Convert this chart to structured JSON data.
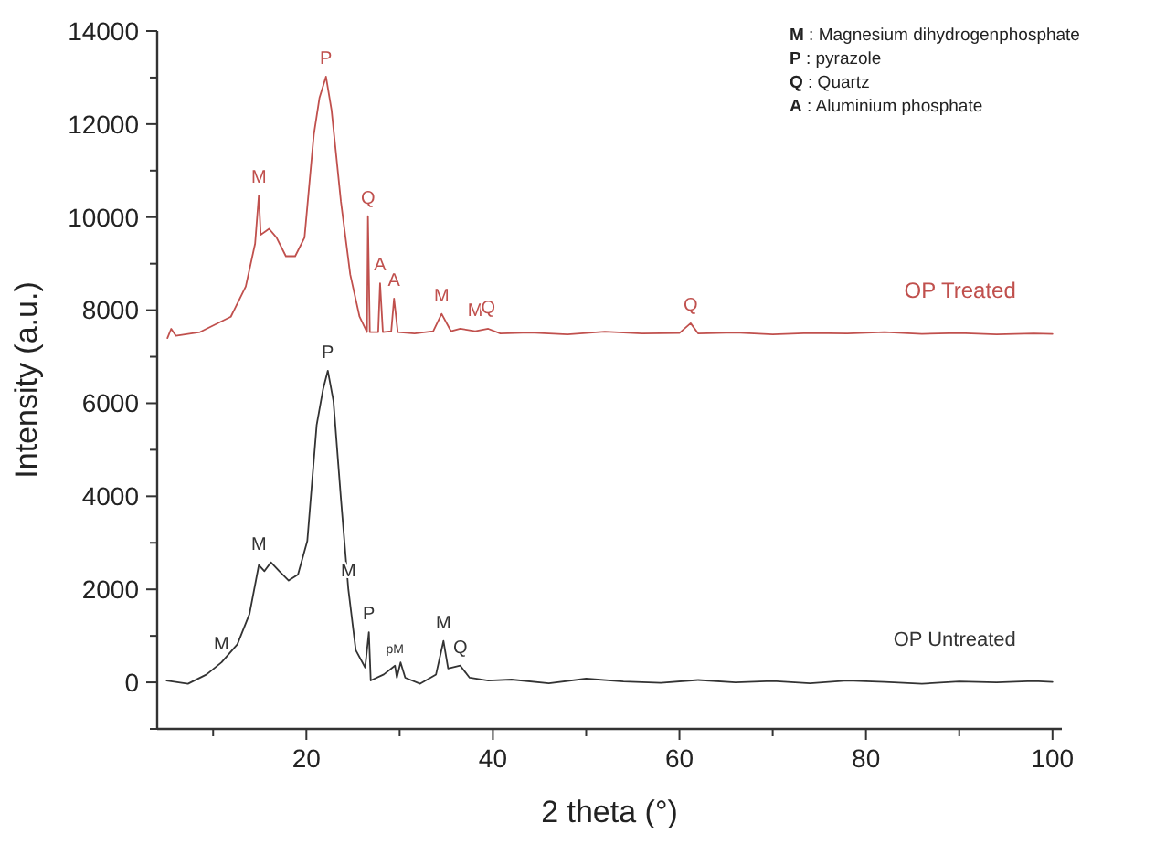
{
  "chart_data": {
    "type": "line",
    "xlabel": "2 theta (°)",
    "ylabel": "Intensity (a.u.)",
    "xlim": [
      4,
      101
    ],
    "ylim": [
      -1000,
      14000
    ],
    "xticks": [
      {
        "value": 10,
        "label": null
      },
      20,
      {
        "value": 30,
        "label": null
      },
      40,
      {
        "value": 50,
        "label": null
      },
      60,
      {
        "value": 70,
        "label": null
      },
      80,
      {
        "value": 90,
        "label": null
      },
      100
    ],
    "yticks": [
      {
        "value": -1000,
        "label": null
      },
      0,
      {
        "value": 1000,
        "label": null
      },
      2000,
      {
        "value": 3000,
        "label": null
      },
      4000,
      {
        "value": 5000,
        "label": null
      },
      6000,
      {
        "value": 7000,
        "label": null
      },
      8000,
      {
        "value": 9000,
        "label": null
      },
      10000,
      {
        "value": 11000,
        "label": null
      },
      12000,
      {
        "value": 13000,
        "label": null
      },
      14000
    ],
    "grid": false,
    "marker": "none",
    "line_style": "solid",
    "series": [
      {
        "name": "OP Treated",
        "color": "#c0504d",
        "x": [
          5.1,
          5.5,
          6.0,
          8.6,
          11.9,
          13.5,
          14.5,
          14.9,
          15.1,
          16.0,
          16.8,
          17.8,
          18.8,
          19.8,
          20.8,
          21.4,
          22.1,
          22.7,
          23.7,
          24.7,
          25.7,
          26.5,
          26.6,
          26.8,
          27.7,
          27.9,
          28.2,
          29.1,
          29.4,
          29.8,
          31.6,
          33.6,
          34.5,
          35.5,
          36.5,
          38.1,
          39.5,
          40.8,
          44,
          48,
          52,
          56,
          60,
          61.2,
          62,
          66,
          70,
          74,
          78,
          82,
          86,
          90,
          94,
          98,
          100
        ],
        "values": [
          7400,
          7600,
          7450,
          7530,
          7860,
          8510,
          9430,
          10470,
          9620,
          9750,
          9560,
          9160,
          9160,
          9560,
          11780,
          12560,
          13020,
          12300,
          10340,
          8770,
          7860,
          7530,
          10020,
          7530,
          7530,
          8580,
          7530,
          7550,
          8250,
          7530,
          7500,
          7550,
          7920,
          7550,
          7600,
          7550,
          7600,
          7500,
          7520,
          7480,
          7540,
          7500,
          7510,
          7720,
          7500,
          7520,
          7480,
          7510,
          7500,
          7530,
          7490,
          7510,
          7480,
          7500,
          7490
        ]
      },
      {
        "name": "OP Untreated",
        "color": "#333333",
        "x": [
          5.0,
          7.3,
          9.3,
          10.9,
          12.6,
          13.9,
          14.9,
          15.5,
          16.2,
          17.1,
          18.1,
          19.1,
          20.1,
          21.1,
          21.8,
          22.3,
          22.9,
          23.7,
          24.5,
          25.3,
          26.3,
          26.7,
          26.9,
          28.3,
          29.5,
          29.7,
          30.1,
          30.6,
          32.2,
          33.9,
          34.7,
          35.2,
          36.5,
          37.5,
          39.5,
          42,
          46,
          50,
          54,
          58,
          62,
          66,
          70,
          74,
          78,
          82,
          86,
          90,
          94,
          98,
          100
        ],
        "values": [
          40,
          -30,
          170,
          430,
          820,
          1470,
          2520,
          2390,
          2580,
          2390,
          2190,
          2320,
          3040,
          5530,
          6310,
          6700,
          6050,
          3960,
          2000,
          690,
          320,
          1080,
          40,
          170,
          360,
          100,
          430,
          100,
          -30,
          170,
          890,
          300,
          360,
          100,
          40,
          60,
          -20,
          80,
          20,
          -10,
          50,
          0,
          30,
          -20,
          40,
          10,
          -30,
          20,
          0,
          30,
          10
        ]
      }
    ],
    "annotations": [
      {
        "text": "M",
        "x": 14.9,
        "y": 10470
      },
      {
        "text": "P",
        "x": 22.1,
        "y": 13020
      },
      {
        "text": "Q",
        "x": 26.6,
        "y": 10020
      },
      {
        "text": "A",
        "x": 27.9,
        "y": 8580
      },
      {
        "text": "A",
        "x": 29.4,
        "y": 8250
      },
      {
        "text": "M",
        "x": 34.5,
        "y": 7920
      },
      {
        "text": "M",
        "x": 38.1,
        "y": 7600
      },
      {
        "text": "Q",
        "x": 39.5,
        "y": 7650
      },
      {
        "text": "Q",
        "x": 61.2,
        "y": 7720
      },
      {
        "text": "P",
        "x": 22.3,
        "y": 6700
      },
      {
        "text": "M",
        "x": 14.9,
        "y": 2580
      },
      {
        "text": "M",
        "x": 10.9,
        "y": 430
      },
      {
        "text": "M",
        "x": 24.5,
        "y": 2000
      },
      {
        "text": "P",
        "x": 26.7,
        "y": 1080
      },
      {
        "text": "pM",
        "x": 29.5,
        "y": 360
      },
      {
        "text": "M",
        "x": 34.7,
        "y": 890
      },
      {
        "text": "Q",
        "x": 36.5,
        "y": 360
      },
      "M : Magnesium dihydrogenphosphate",
      "P : pyrazole",
      "Q : Quartz",
      "A : Aluminium phosphate"
    ]
  }
}
